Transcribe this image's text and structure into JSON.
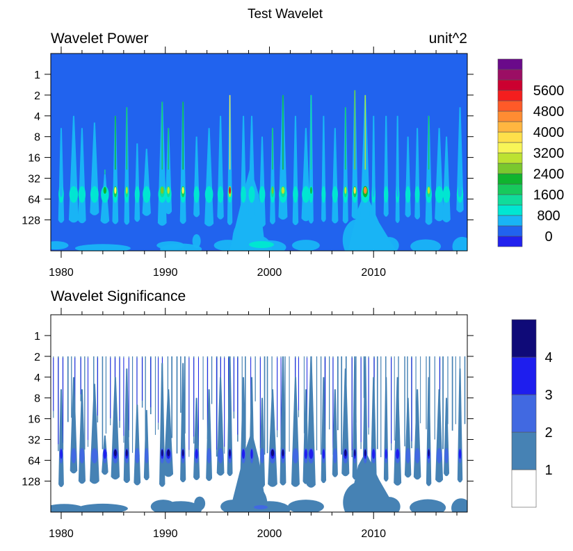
{
  "title": "Test Wavelet",
  "chart_data": [
    {
      "type": "heatmap",
      "title": "Wavelet Power",
      "units": "unit^2",
      "xlabel": "",
      "ylabel": "",
      "x_ticks": [
        "1980",
        "1990",
        "2000",
        "2010"
      ],
      "x_tick_values": [
        1980,
        1990,
        2000,
        2010
      ],
      "xlim": [
        1979.0,
        2019.0
      ],
      "y_ticks": [
        "1",
        "2",
        "4",
        "8",
        "16",
        "32",
        "64",
        "128"
      ],
      "y_tick_values": [
        1,
        2,
        4,
        8,
        16,
        32,
        64,
        128
      ],
      "ylim_reversed_log2": [
        0.5,
        360
      ],
      "colorbar": {
        "labels": [
          "0",
          "800",
          "1600",
          "2400",
          "3200",
          "4000",
          "4800",
          "5600"
        ],
        "levels": [
          0,
          400,
          800,
          1200,
          1600,
          2000,
          2400,
          2800,
          3200,
          3600,
          4000,
          4400,
          4800,
          5200,
          5600,
          6000
        ],
        "colors": [
          "#2121ee",
          "#2163ee",
          "#19b4f5",
          "#00e6d2",
          "#10dc9b",
          "#17c95c",
          "#0fb42e",
          "#7ac82e",
          "#bde231",
          "#f8f557",
          "#ffe04a",
          "#ffb640",
          "#ff8c32",
          "#ff5a28",
          "#f41e1e",
          "#cc0030",
          "#9b0e64",
          "#6a0a8a"
        ]
      },
      "background_color": "#2163ee",
      "features": [
        {
          "year": 1980.0,
          "top": 6,
          "power": 1300
        },
        {
          "year": 1981.2,
          "top": 4,
          "power": 900
        },
        {
          "year": 1982.0,
          "top": 6,
          "power": 800
        },
        {
          "year": 1983.2,
          "top": 5,
          "power": 1000
        },
        {
          "year": 1984.2,
          "top": 28,
          "power": 2200
        },
        {
          "year": 1985.2,
          "top": 4,
          "power": 3300
        },
        {
          "year": 1986.3,
          "top": 3,
          "power": 2800
        },
        {
          "year": 1987.3,
          "top": 10,
          "power": 800
        },
        {
          "year": 1988.2,
          "top": 12,
          "power": 900
        },
        {
          "year": 1989.7,
          "top": 2.5,
          "power": 2400
        },
        {
          "year": 1990.3,
          "top": 6,
          "power": 2800
        },
        {
          "year": 1991.7,
          "top": 2.5,
          "power": 3400
        },
        {
          "year": 1993.0,
          "top": 8,
          "power": 1200
        },
        {
          "year": 1994.2,
          "top": 6,
          "power": 900
        },
        {
          "year": 1995.3,
          "top": 4,
          "power": 1000
        },
        {
          "year": 1996.2,
          "top": 2,
          "power": 5600
        },
        {
          "year": 1997.5,
          "top": 4,
          "power": 1100
        },
        {
          "year": 1998.3,
          "top": 4,
          "power": 2000
        },
        {
          "year": 1999.3,
          "top": 8,
          "power": 900
        },
        {
          "year": 2000.3,
          "top": 6,
          "power": 2500
        },
        {
          "year": 2001.3,
          "top": 2,
          "power": 3000
        },
        {
          "year": 2002.5,
          "top": 4,
          "power": 1000
        },
        {
          "year": 2003.5,
          "top": 6,
          "power": 1800
        },
        {
          "year": 2004.0,
          "top": 2,
          "power": 2200
        },
        {
          "year": 2005.2,
          "top": 4,
          "power": 1700
        },
        {
          "year": 2006.3,
          "top": 6,
          "power": 1000
        },
        {
          "year": 2007.3,
          "top": 3,
          "power": 2800
        },
        {
          "year": 2008.2,
          "top": 1.7,
          "power": 3600
        },
        {
          "year": 2009.2,
          "top": 2,
          "power": 4400
        },
        {
          "year": 2010.0,
          "top": 4,
          "power": 1500
        },
        {
          "year": 2011.2,
          "top": 4,
          "power": 1200
        },
        {
          "year": 2012.3,
          "top": 4,
          "power": 1500
        },
        {
          "year": 2013.3,
          "top": 8,
          "power": 1000
        },
        {
          "year": 2014.2,
          "top": 6,
          "power": 900
        },
        {
          "year": 2015.3,
          "top": 4,
          "power": 2800
        },
        {
          "year": 2016.3,
          "top": 6,
          "power": 1000
        },
        {
          "year": 2017.0,
          "top": 8,
          "power": 800
        },
        {
          "year": 2018.3,
          "top": 3,
          "power": 1500
        }
      ]
    },
    {
      "type": "heatmap",
      "title": "Wavelet Significance",
      "xlabel": "",
      "ylabel": "",
      "x_ticks": [
        "1980",
        "1990",
        "2000",
        "2010"
      ],
      "x_tick_values": [
        1980,
        1990,
        2000,
        2010
      ],
      "xlim": [
        1979.0,
        2019.0
      ],
      "y_ticks": [
        "1",
        "2",
        "4",
        "8",
        "16",
        "32",
        "64",
        "128"
      ],
      "y_tick_values": [
        1,
        2,
        4,
        8,
        16,
        32,
        64,
        128
      ],
      "ylim_reversed_log2": [
        0.5,
        360
      ],
      "colorbar": {
        "labels": [
          "1",
          "2",
          "3",
          "4"
        ],
        "levels": [
          1,
          2,
          3,
          4
        ],
        "colors": [
          "#ffffff",
          "#4682b4",
          "#4169e1",
          "#1e1eee",
          "#0f0a78"
        ]
      },
      "background_color": "#ffffff",
      "min_significant_period": 2
    }
  ]
}
